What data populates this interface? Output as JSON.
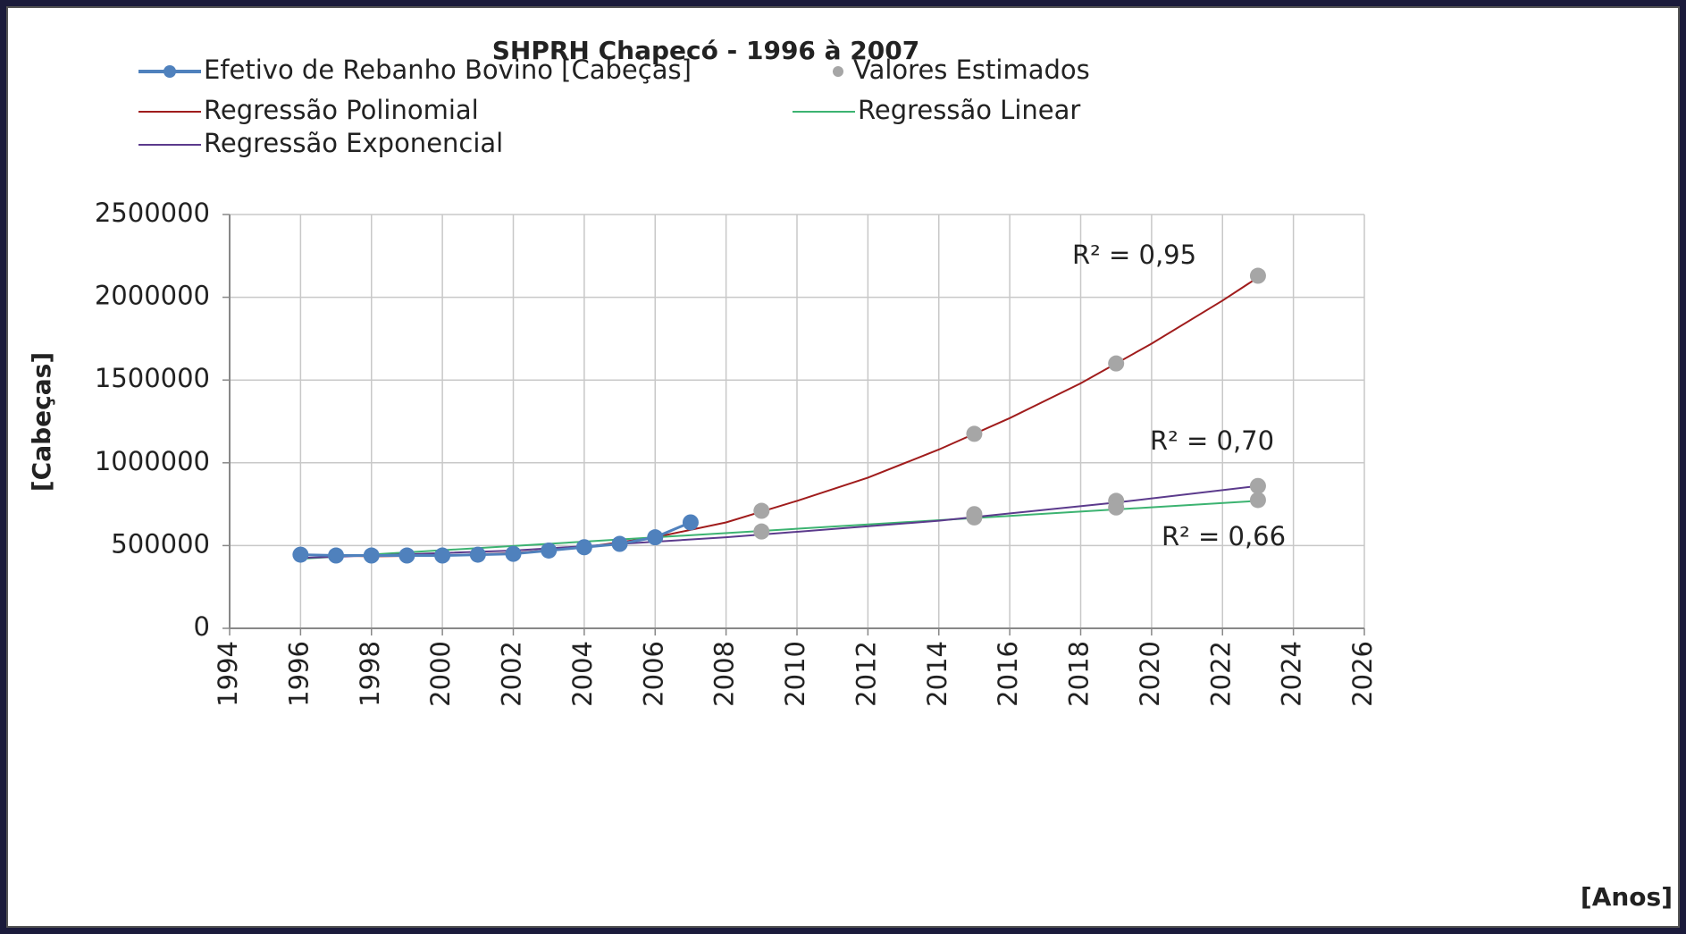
{
  "chart_data": {
    "type": "line",
    "title": "SHPRH Chapecó - 1996 à 2007",
    "x_label": "[Anos]",
    "y_label": "[Cabeças]",
    "xlim": [
      1994,
      2026
    ],
    "xticks": [
      1994,
      1996,
      1998,
      2000,
      2002,
      2004,
      2006,
      2008,
      2010,
      2012,
      2014,
      2016,
      2018,
      2020,
      2022,
      2024,
      2026
    ],
    "ylim": [
      0,
      2500000
    ],
    "yticks": [
      0,
      500000,
      1000000,
      1500000,
      2000000,
      2500000
    ],
    "grid": true,
    "series": [
      {
        "name": "Efetivo de Rebanho Bovino [Cabeças]",
        "color": "#4f81bd",
        "mode": "lines+markers",
        "x": [
          1996,
          1997,
          1998,
          1999,
          2000,
          2001,
          2002,
          2003,
          2004,
          2005,
          2006,
          2007
        ],
        "values": [
          445000,
          440000,
          440000,
          440000,
          440000,
          445000,
          450000,
          470000,
          490000,
          510000,
          550000,
          640000
        ]
      },
      {
        "name": "Valores Estimados",
        "color": "#a6a6a6",
        "mode": "markers",
        "x": [
          2009,
          2009,
          2015,
          2015,
          2015,
          2019,
          2019,
          2019,
          2023,
          2023,
          2023
        ],
        "values": [
          710000,
          585000,
          1175000,
          690000,
          670000,
          1600000,
          770000,
          730000,
          2130000,
          860000,
          775000
        ]
      },
      {
        "name": "Regressão Polinomial",
        "color": "#a01c1c",
        "mode": "lines",
        "x": [
          1996,
          1998,
          2000,
          2002,
          2004,
          2006,
          2008,
          2010,
          2012,
          2014,
          2016,
          2018,
          2020,
          2022,
          2023
        ],
        "values": [
          445000,
          435000,
          440000,
          455000,
          490000,
          550000,
          640000,
          770000,
          910000,
          1080000,
          1270000,
          1480000,
          1720000,
          1980000,
          2120000
        ]
      },
      {
        "name": "Regressão Linear",
        "color": "#3cb371",
        "mode": "lines",
        "x": [
          1996,
          2023
        ],
        "values": [
          420000,
          770000
        ]
      },
      {
        "name": "Regressão Exponencial",
        "color": "#5b3a8c",
        "mode": "lines",
        "x": [
          1996,
          2002,
          2008,
          2014,
          2019,
          2023
        ],
        "values": [
          425000,
          470000,
          550000,
          650000,
          760000,
          860000
        ]
      }
    ],
    "annotations": [
      "R² = 0,95",
      "R² = 0,70",
      "R² = 0,66"
    ]
  }
}
